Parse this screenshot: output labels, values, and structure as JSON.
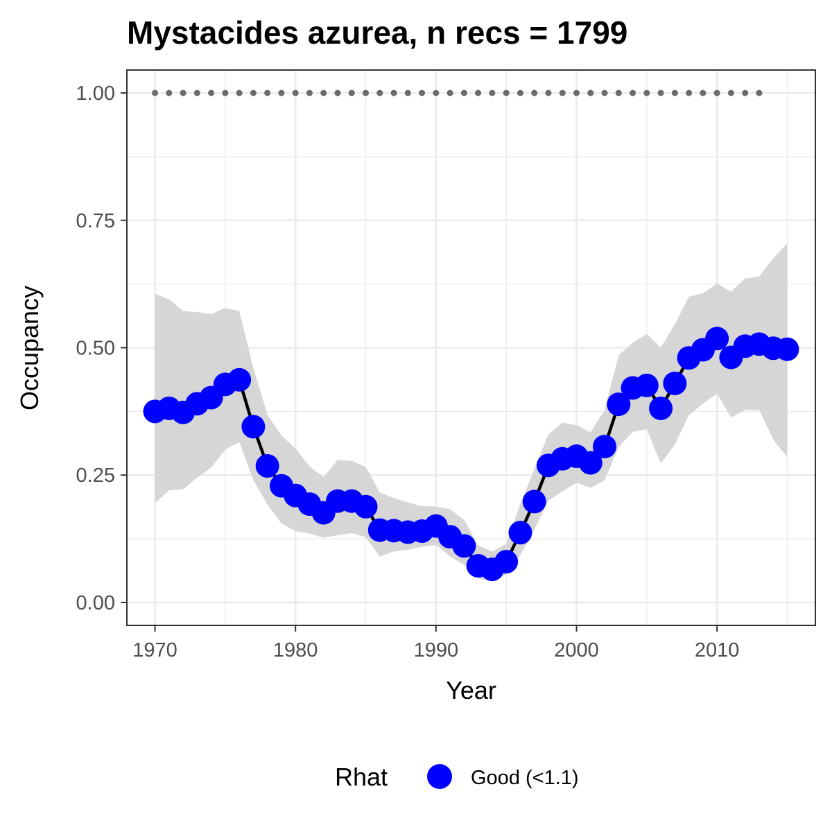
{
  "chart_data": {
    "type": "line",
    "title": "Mystacides azurea, n recs = 1799",
    "xlabel": "Year",
    "ylabel": "Occupancy",
    "xlim": [
      1968,
      2017
    ],
    "ylim": [
      -0.045,
      1.045
    ],
    "x_ticks": [
      1970,
      1980,
      1990,
      2000,
      2010
    ],
    "x_tick_labels": [
      "1970",
      "1980",
      "1990",
      "2000",
      "2010"
    ],
    "y_ticks": [
      0,
      0.25,
      0.5,
      0.75,
      1.0
    ],
    "y_tick_labels": [
      "0.00",
      "0.25",
      "0.50",
      "0.75",
      "1.00"
    ],
    "grid": true,
    "legend": {
      "position": "bottom",
      "title": "Rhat",
      "entries": [
        {
          "label": "Good (<1.1)",
          "color": "#0000ff"
        }
      ]
    },
    "colors": {
      "points": "#0000ff",
      "line": "#000000",
      "ribbon": "#d6d6d6",
      "reference_dots": "#6b6b6b",
      "grid": "#ebebeb",
      "panel_border": "#333333"
    },
    "series": [
      {
        "x": [
          1970,
          1971,
          1972,
          1973,
          1974,
          1975,
          1976,
          1977,
          1978,
          1979,
          1980,
          1981,
          1982,
          1983,
          1984,
          1985,
          1986,
          1987,
          1988,
          1989,
          1990,
          1991,
          1992,
          1993,
          1994,
          1995,
          1996,
          1997,
          1998,
          1999,
          2000,
          2001,
          2002,
          2003,
          2004,
          2005,
          2006,
          2007,
          2008,
          2009,
          2010,
          2011,
          2012,
          2013,
          2014,
          2015
        ],
        "y": [
          0.375,
          0.381,
          0.373,
          0.39,
          0.402,
          0.428,
          0.437,
          0.345,
          0.268,
          0.229,
          0.21,
          0.193,
          0.176,
          0.199,
          0.199,
          0.188,
          0.142,
          0.141,
          0.138,
          0.14,
          0.15,
          0.129,
          0.111,
          0.072,
          0.065,
          0.08,
          0.137,
          0.198,
          0.269,
          0.282,
          0.287,
          0.274,
          0.306,
          0.389,
          0.421,
          0.426,
          0.381,
          0.43,
          0.48,
          0.496,
          0.518,
          0.481,
          0.503,
          0.507,
          0.499,
          0.497
        ],
        "lower": [
          0.195,
          0.22,
          0.222,
          0.245,
          0.265,
          0.3,
          0.315,
          0.24,
          0.192,
          0.155,
          0.14,
          0.135,
          0.127,
          0.132,
          0.136,
          0.128,
          0.09,
          0.1,
          0.103,
          0.109,
          0.113,
          0.09,
          0.074,
          0.047,
          0.042,
          0.055,
          0.093,
          0.143,
          0.2,
          0.218,
          0.235,
          0.225,
          0.24,
          0.305,
          0.335,
          0.34,
          0.273,
          0.31,
          0.368,
          0.39,
          0.41,
          0.363,
          0.378,
          0.378,
          0.32,
          0.285
        ],
        "upper": [
          0.606,
          0.595,
          0.572,
          0.57,
          0.566,
          0.578,
          0.572,
          0.46,
          0.368,
          0.328,
          0.302,
          0.267,
          0.246,
          0.28,
          0.278,
          0.266,
          0.216,
          0.205,
          0.196,
          0.189,
          0.188,
          0.183,
          0.162,
          0.112,
          0.1,
          0.115,
          0.193,
          0.262,
          0.33,
          0.353,
          0.348,
          0.334,
          0.378,
          0.485,
          0.51,
          0.527,
          0.5,
          0.546,
          0.6,
          0.607,
          0.626,
          0.61,
          0.636,
          0.64,
          0.675,
          0.705
        ]
      }
    ],
    "reference_points": {
      "x": [
        1970,
        1971,
        1972,
        1973,
        1974,
        1975,
        1976,
        1977,
        1978,
        1979,
        1980,
        1981,
        1982,
        1983,
        1984,
        1985,
        1986,
        1987,
        1988,
        1989,
        1990,
        1991,
        1992,
        1993,
        1994,
        1995,
        1996,
        1997,
        1998,
        1999,
        2000,
        2001,
        2002,
        2003,
        2004,
        2005,
        2006,
        2007,
        2008,
        2009,
        2010,
        2011,
        2012,
        2013
      ],
      "y": 1.0
    }
  }
}
